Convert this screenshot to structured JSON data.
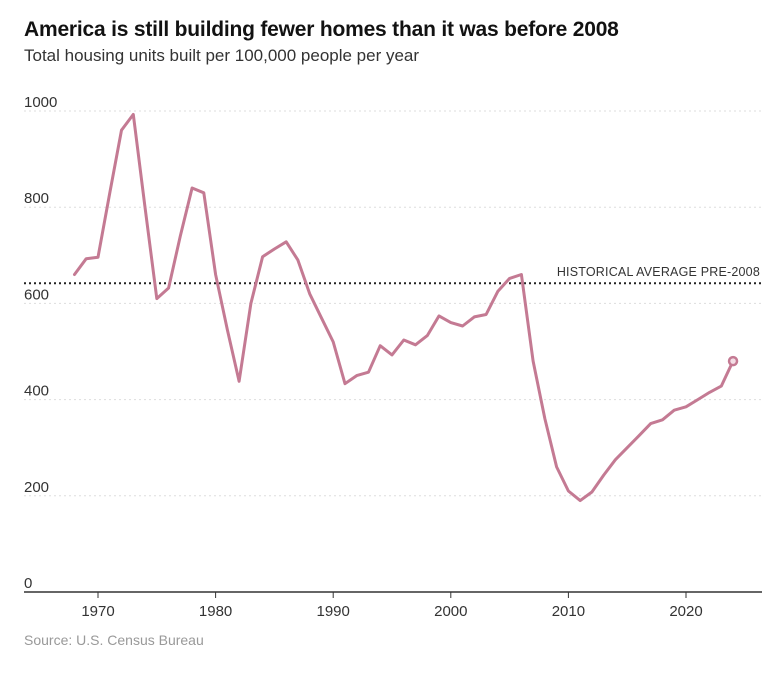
{
  "header": {
    "title": "America is still building fewer homes than it was before 2008",
    "subtitle": "Total housing units built per 100,000 people per year"
  },
  "footer": {
    "source": "Source: U.S. Census Bureau"
  },
  "colors": {
    "line": "#c47a93",
    "reference": "#222222",
    "grid": "#dddddd",
    "axis": "#333333"
  },
  "chart_data": {
    "type": "line",
    "title": "America is still building fewer homes than it was before 2008",
    "subtitle": "Total housing units built per 100,000 people per year",
    "xlabel": "",
    "ylabel": "",
    "xlim": [
      1964,
      2026
    ],
    "ylim": [
      0,
      1000
    ],
    "x_ticks": [
      1970,
      1980,
      1990,
      2000,
      2010,
      2020
    ],
    "y_ticks": [
      0,
      200,
      400,
      600,
      800,
      1000
    ],
    "grid": true,
    "legend": "none",
    "reference_line": {
      "label": "HISTORICAL AVERAGE PRE-2008",
      "value": 642
    },
    "series": [
      {
        "x": [
          1968,
          1969,
          1970,
          1971,
          1972,
          1973,
          1974,
          1975,
          1976,
          1977,
          1978,
          1979,
          1980,
          1981,
          1982,
          1983,
          1984,
          1985,
          1986,
          1987,
          1988,
          1989,
          1990,
          1991,
          1992,
          1993,
          1994,
          1995,
          1996,
          1997,
          1998,
          1999,
          2000,
          2001,
          2002,
          2003,
          2004,
          2005,
          2006,
          2007,
          2008,
          2009,
          2010,
          2011,
          2012,
          2013,
          2014,
          2015,
          2016,
          2017,
          2018,
          2019,
          2020,
          2021,
          2022,
          2023,
          2024
        ],
        "y": [
          660,
          693,
          696,
          830,
          960,
          993,
          800,
          610,
          632,
          740,
          840,
          830,
          660,
          545,
          438,
          600,
          697,
          713,
          728,
          690,
          620,
          570,
          520,
          433,
          450,
          457,
          512,
          493,
          524,
          514,
          533,
          574,
          560,
          553,
          572,
          577,
          625,
          652,
          660,
          480,
          360,
          260,
          210,
          190,
          208,
          243,
          275,
          300,
          325,
          350,
          358,
          378,
          385,
          400,
          415,
          428,
          480
        ]
      }
    ]
  }
}
